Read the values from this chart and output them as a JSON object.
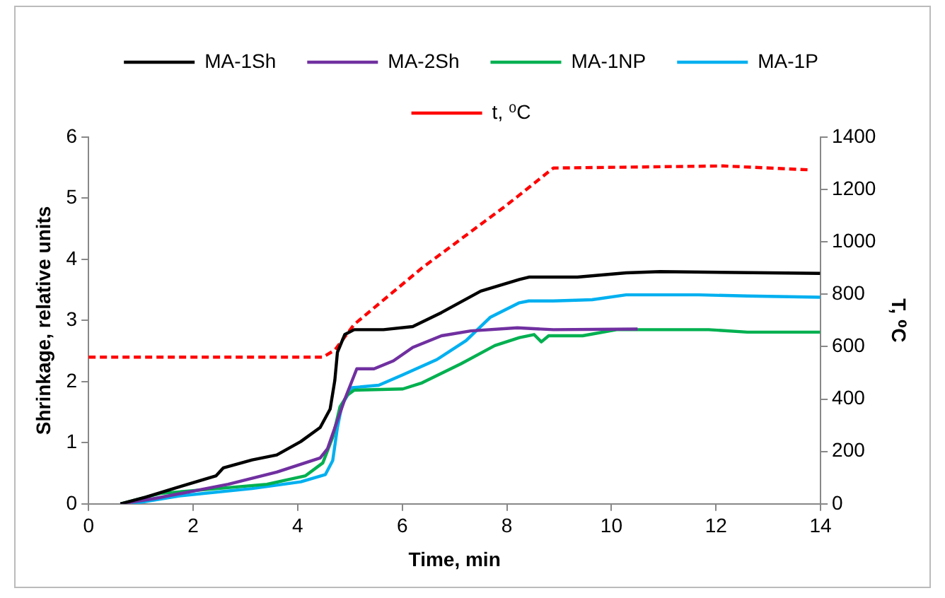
{
  "chart_data": {
    "type": "line",
    "xlabel": "Time, min",
    "ylabel": "Shrinkage, relative units",
    "y2label": "T, ⁰C",
    "xlim": [
      0,
      14
    ],
    "xticks": [
      0,
      2,
      4,
      6,
      8,
      10,
      12,
      14
    ],
    "ylim": [
      0,
      6
    ],
    "yticks": [
      0,
      1,
      2,
      3,
      4,
      5,
      6
    ],
    "y2lim": [
      0,
      1400
    ],
    "y2ticks": [
      0,
      200,
      400,
      600,
      800,
      1000,
      1200,
      1400
    ],
    "grid": false,
    "legend": "top",
    "marker": "none",
    "series": [
      {
        "name": "MA-1Sh",
        "color": "#000000",
        "x": [
          0.61,
          1.09,
          1.74,
          2.44,
          2.58,
          3.13,
          3.6,
          4.06,
          4.43,
          4.62,
          4.71,
          4.76,
          4.9,
          5.08,
          5.64,
          6.2,
          6.75,
          7.5,
          8.24,
          8.42,
          9.35,
          10.28,
          10.93,
          13.99
        ],
        "values": [
          0,
          0.11,
          0.28,
          0.46,
          0.59,
          0.72,
          0.8,
          1.02,
          1.25,
          1.55,
          2.02,
          2.48,
          2.77,
          2.85,
          2.85,
          2.9,
          3.13,
          3.48,
          3.67,
          3.71,
          3.71,
          3.78,
          3.8,
          3.77
        ]
      },
      {
        "name": "MA-2Sh",
        "color": "#7030a0",
        "x": [
          0.61,
          1.28,
          2.67,
          3.6,
          4.43,
          4.57,
          4.9,
          5.13,
          5.46,
          5.83,
          6.2,
          6.75,
          7.31,
          8.2,
          8.89,
          10.5
        ],
        "values": [
          0,
          0.09,
          0.32,
          0.52,
          0.75,
          0.9,
          1.71,
          2.21,
          2.21,
          2.34,
          2.56,
          2.75,
          2.83,
          2.88,
          2.85,
          2.86
        ]
      },
      {
        "name": "MA-1NP",
        "color": "#00b050",
        "x": [
          0.61,
          1.37,
          2.2,
          3.41,
          4.15,
          4.48,
          4.67,
          4.81,
          4.95,
          5.08,
          6.01,
          6.38,
          7.12,
          7.77,
          8.24,
          8.52,
          8.66,
          8.8,
          9.45,
          10.1,
          11.86,
          12.6,
          13.99
        ],
        "values": [
          0,
          0.17,
          0.23,
          0.32,
          0.46,
          0.67,
          1.09,
          1.59,
          1.78,
          1.86,
          1.88,
          1.98,
          2.29,
          2.59,
          2.72,
          2.77,
          2.65,
          2.75,
          2.75,
          2.85,
          2.85,
          2.81,
          2.81
        ]
      },
      {
        "name": "MA-1P",
        "color": "#00b0f0",
        "x": [
          0.82,
          1.74,
          3.13,
          4.06,
          4.53,
          4.67,
          4.76,
          4.85,
          5.04,
          5.55,
          6.01,
          6.66,
          7.22,
          7.68,
          8.24,
          8.42,
          8.89,
          9.63,
          10.28,
          11.67,
          12.6,
          13.99
        ],
        "values": [
          0,
          0.13,
          0.25,
          0.36,
          0.48,
          0.71,
          1.25,
          1.63,
          1.9,
          1.94,
          2.11,
          2.36,
          2.67,
          3.05,
          3.29,
          3.32,
          3.32,
          3.34,
          3.42,
          3.42,
          3.4,
          3.38
        ]
      },
      {
        "name": "t, ⁰C",
        "color": "#ff0000",
        "axis": "y2",
        "line_style": "dashed",
        "x": [
          0,
          4.48,
          4.71,
          5.08,
          6.38,
          7.96,
          8.24,
          8.89,
          12.14,
          13.8
        ],
        "values": [
          560,
          560,
          587,
          685,
          901,
          1135,
          1179,
          1282,
          1290,
          1275
        ]
      }
    ]
  }
}
